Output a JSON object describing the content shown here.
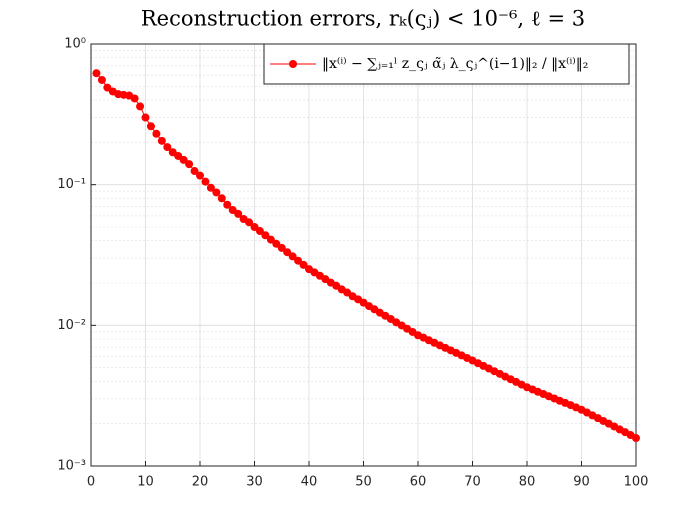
{
  "chart_data": {
    "type": "line",
    "title": "Reconstruction errors, rₖ(ςⱼ) < 10⁻⁶, ℓ = 3",
    "x": [
      1,
      2,
      3,
      4,
      5,
      6,
      7,
      8,
      9,
      10,
      11,
      12,
      13,
      14,
      15,
      16,
      17,
      18,
      19,
      20,
      21,
      22,
      23,
      24,
      25,
      26,
      27,
      28,
      29,
      30,
      31,
      32,
      33,
      34,
      35,
      36,
      37,
      38,
      39,
      40,
      41,
      42,
      43,
      44,
      45,
      46,
      47,
      48,
      49,
      50,
      51,
      52,
      53,
      54,
      55,
      56,
      57,
      58,
      59,
      60,
      61,
      62,
      63,
      64,
      65,
      66,
      67,
      68,
      69,
      70,
      71,
      72,
      73,
      74,
      75,
      76,
      77,
      78,
      79,
      80,
      81,
      82,
      83,
      84,
      85,
      86,
      87,
      88,
      89,
      90,
      91,
      92,
      93,
      94,
      95,
      96,
      97,
      98,
      99,
      100
    ],
    "series": [
      {
        "name": "‖x⁽ⁱ⁾ − ∑ⱼ₌₁ˡ z_ςⱼ α̃ⱼ λ_ςⱼ^(i−1)‖₂ / ‖x⁽ⁱ⁾‖₂",
        "color": "#ff0000",
        "values": [
          0.62,
          0.555,
          0.49,
          0.46,
          0.44,
          0.435,
          0.43,
          0.41,
          0.36,
          0.3,
          0.26,
          0.23,
          0.205,
          0.185,
          0.17,
          0.16,
          0.15,
          0.14,
          0.125,
          0.116,
          0.105,
          0.095,
          0.088,
          0.08,
          0.072,
          0.066,
          0.062,
          0.057,
          0.054,
          0.05,
          0.0468,
          0.0437,
          0.0407,
          0.038,
          0.0355,
          0.0331,
          0.0309,
          0.0288,
          0.0269,
          0.0251,
          0.0238,
          0.0225,
          0.0213,
          0.0201,
          0.0191,
          0.018,
          0.0171,
          0.0161,
          0.0153,
          0.0145,
          0.0137,
          0.013,
          0.0123,
          0.0117,
          0.0111,
          0.0105,
          0.00998,
          0.00946,
          0.00897,
          0.0085,
          0.00817,
          0.00783,
          0.00752,
          0.00721,
          0.00692,
          0.00664,
          0.00637,
          0.00611,
          0.00586,
          0.00562,
          0.00538,
          0.00515,
          0.00493,
          0.00472,
          0.00452,
          0.00432,
          0.00414,
          0.00396,
          0.00379,
          0.00363,
          0.0035,
          0.00337,
          0.00325,
          0.00313,
          0.00302,
          0.00291,
          0.00281,
          0.00271,
          0.00261,
          0.00251,
          0.0024,
          0.00229,
          0.00219,
          0.00209,
          0.002,
          0.00191,
          0.00182,
          0.00174,
          0.00166,
          0.00158
        ]
      }
    ],
    "xlim": [
      0,
      100
    ],
    "xticks": [
      0,
      10,
      20,
      30,
      40,
      50,
      60,
      70,
      80,
      90,
      100
    ],
    "ylim": [
      0.001,
      1
    ],
    "ylog": true,
    "yticks": [
      {
        "value": 0.001,
        "label": "10⁻³"
      },
      {
        "value": 0.01,
        "label": "10⁻²"
      },
      {
        "value": 0.1,
        "label": "10⁻¹"
      },
      {
        "value": 1,
        "label": "10⁰"
      }
    ],
    "grid": true,
    "legend": "northeast"
  }
}
